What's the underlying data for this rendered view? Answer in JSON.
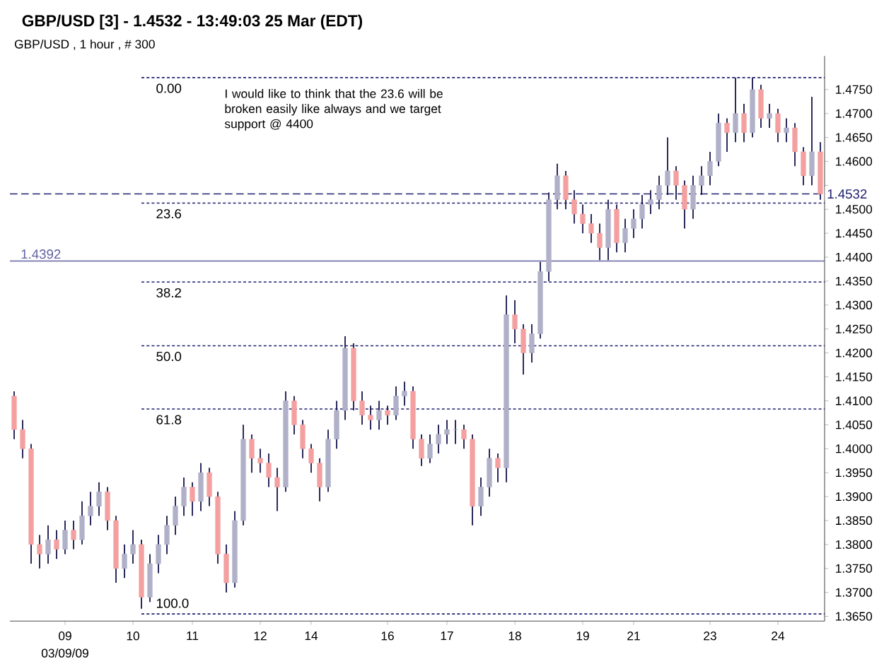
{
  "chart_data": {
    "type": "candlestick",
    "title": "GBP/USD [3] - 1.4532 - 13:49:03  25 Mar (EDT)",
    "subtitle": "GBP/USD , 1 hour , # 300",
    "annotations": [
      "I would like to think that the 23.6 will be broken easily like always and we target support @ 4400",
      "03/09/09",
      {
        "text": "0.00",
        "y": 1.4775
      },
      {
        "text": "23.6",
        "y": 1.4513
      },
      {
        "text": "38.2",
        "y": 1.4348
      },
      {
        "text": "50.0",
        "y": 1.4215
      },
      {
        "text": "61.8",
        "y": 1.4083
      },
      {
        "text": "100.0",
        "y": 1.3655
      }
    ],
    "categories": [
      null,
      null,
      null,
      null,
      null,
      null,
      "09",
      null,
      null,
      null,
      null,
      null,
      null,
      null,
      "10",
      null,
      null,
      null,
      null,
      null,
      null,
      "11",
      null,
      null,
      null,
      null,
      null,
      null,
      null,
      "12",
      null,
      null,
      null,
      null,
      null,
      "14",
      null,
      null,
      null,
      null,
      null,
      null,
      null,
      null,
      "16",
      null,
      null,
      null,
      null,
      null,
      null,
      "17",
      null,
      null,
      null,
      null,
      null,
      null,
      null,
      "18",
      null,
      null,
      null,
      null,
      null,
      null,
      null,
      "19",
      null,
      null,
      null,
      null,
      null,
      "21",
      null,
      null,
      null,
      null,
      null,
      null,
      null,
      null,
      "23",
      null,
      null,
      null,
      null,
      null,
      null,
      null,
      "24",
      null,
      null,
      null,
      null,
      null
    ],
    "colors": [
      "#f4a0a0",
      "#f4a0a0",
      "#f4a0a0",
      "#f4a0a0",
      "#b0b0c8",
      "#f4a0a0",
      "#b0b0c8",
      "#f4a0a0",
      "#b0b0c8",
      "#b0b0c8",
      "#b0b0c8",
      "#f4a0a0",
      "#f4a0a0",
      "#b0b0c8",
      "#b0b0c8",
      "#f4a0a0",
      "#b0b0c8",
      "#b0b0c8",
      "#b0b0c8",
      "#b0b0c8",
      "#b0b0c8",
      "#f4a0a0",
      "#b0b0c8",
      "#f4a0a0",
      "#f4a0a0",
      "#f4a0a0",
      "#b0b0c8",
      "#b0b0c8",
      "#f4a0a0",
      "#f4a0a0",
      "#f4a0a0",
      "#f4a0a0",
      "#b0b0c8",
      "#f4a0a0",
      "#f4a0a0",
      "#f4a0a0",
      "#f4a0a0",
      "#b0b0c8",
      "#b0b0c8",
      "#b0b0c8",
      "#f4a0a0",
      "#f4a0a0",
      "#f4a0a0",
      "#b0b0c8",
      "#f4a0a0",
      "#b0b0c8",
      "#b0b0c8",
      "#f4a0a0",
      "#f4a0a0",
      "#b0b0c8",
      "#b0b0c8",
      "#b0b0c8",
      "#b0b0c8",
      "#f4a0a0",
      "#f4a0a0",
      "#b0b0c8",
      "#b0b0c8",
      "#f4a0a0",
      "#b0b0c8",
      "#f4a0a0",
      "#f4a0a0",
      "#b0b0c8",
      "#b0b0c8",
      "#b0b0c8",
      "#b0b0c8",
      "#f4a0a0",
      "#f4a0a0",
      "#f4a0a0",
      "#f4a0a0",
      "#f4a0a0",
      "#b0b0c8",
      "#f4a0a0",
      "#b0b0c8",
      "#b0b0c8",
      "#b0b0c8",
      "#b0b0c8",
      "#b0b0c8",
      "#b0b0c8",
      "#f4a0a0",
      "#f4a0a0",
      "#b0b0c8",
      "#b0b0c8",
      "#b0b0c8",
      "#b0b0c8",
      "#f4a0a0",
      "#b0b0c8",
      "#f4a0a0",
      "#b0b0c8",
      "#f4a0a0",
      "#b0b0c8",
      "#f4a0a0",
      "#b0b0c8",
      "#f4a0a0",
      "#f4a0a0",
      "#b0b0c8",
      "#f4a0a0"
    ],
    "ohlc": [
      [
        1.411,
        1.412,
        1.402,
        1.404
      ],
      [
        1.404,
        1.406,
        1.398,
        1.4
      ],
      [
        1.4,
        1.401,
        1.376,
        1.38
      ],
      [
        1.38,
        1.382,
        1.375,
        1.378
      ],
      [
        1.378,
        1.384,
        1.376,
        1.381
      ],
      [
        1.381,
        1.383,
        1.377,
        1.379
      ],
      [
        1.379,
        1.385,
        1.378,
        1.383
      ],
      [
        1.383,
        1.385,
        1.379,
        1.381
      ],
      [
        1.381,
        1.389,
        1.38,
        1.386
      ],
      [
        1.386,
        1.391,
        1.384,
        1.388
      ],
      [
        1.388,
        1.393,
        1.386,
        1.391
      ],
      [
        1.391,
        1.392,
        1.383,
        1.385
      ],
      [
        1.385,
        1.386,
        1.372,
        1.375
      ],
      [
        1.375,
        1.38,
        1.373,
        1.378
      ],
      [
        1.378,
        1.383,
        1.376,
        1.38
      ],
      [
        1.38,
        1.381,
        1.3666,
        1.369
      ],
      [
        1.369,
        1.378,
        1.368,
        1.376
      ],
      [
        1.376,
        1.382,
        1.374,
        1.38
      ],
      [
        1.38,
        1.386,
        1.378,
        1.384
      ],
      [
        1.384,
        1.39,
        1.382,
        1.388
      ],
      [
        1.388,
        1.394,
        1.386,
        1.392
      ],
      [
        1.392,
        1.393,
        1.386,
        1.389
      ],
      [
        1.389,
        1.397,
        1.387,
        1.395
      ],
      [
        1.395,
        1.396,
        1.388,
        1.39
      ],
      [
        1.39,
        1.391,
        1.376,
        1.378
      ],
      [
        1.378,
        1.38,
        1.37,
        1.372
      ],
      [
        1.372,
        1.387,
        1.371,
        1.385
      ],
      [
        1.385,
        1.405,
        1.384,
        1.402
      ],
      [
        1.402,
        1.403,
        1.395,
        1.398
      ],
      [
        1.398,
        1.4,
        1.395,
        1.397
      ],
      [
        1.397,
        1.399,
        1.392,
        1.394
      ],
      [
        1.394,
        1.396,
        1.387,
        1.392
      ],
      [
        1.392,
        1.412,
        1.391,
        1.41
      ],
      [
        1.41,
        1.411,
        1.403,
        1.405
      ],
      [
        1.405,
        1.406,
        1.398,
        1.4
      ],
      [
        1.4,
        1.401,
        1.395,
        1.397
      ],
      [
        1.397,
        1.398,
        1.389,
        1.392
      ],
      [
        1.392,
        1.404,
        1.391,
        1.402
      ],
      [
        1.402,
        1.41,
        1.4,
        1.408
      ],
      [
        1.408,
        1.4235,
        1.406,
        1.421
      ],
      [
        1.421,
        1.422,
        1.408,
        1.41
      ],
      [
        1.41,
        1.412,
        1.405,
        1.407
      ],
      [
        1.407,
        1.409,
        1.404,
        1.406
      ],
      [
        1.406,
        1.41,
        1.404,
        1.408
      ],
      [
        1.408,
        1.409,
        1.405,
        1.407
      ],
      [
        1.407,
        1.413,
        1.406,
        1.411
      ],
      [
        1.411,
        1.414,
        1.409,
        1.412
      ],
      [
        1.412,
        1.413,
        1.4,
        1.402
      ],
      [
        1.402,
        1.403,
        1.3964,
        1.398
      ],
      [
        1.398,
        1.403,
        1.397,
        1.401
      ],
      [
        1.401,
        1.405,
        1.399,
        1.403
      ],
      [
        1.403,
        1.406,
        1.401,
        1.404
      ],
      [
        1.404,
        1.406,
        1.401,
        1.404
      ],
      [
        1.404,
        1.405,
        1.4,
        1.402
      ],
      [
        1.402,
        1.403,
        1.384,
        1.388
      ],
      [
        1.388,
        1.394,
        1.386,
        1.392
      ],
      [
        1.392,
        1.4,
        1.39,
        1.398
      ],
      [
        1.398,
        1.399,
        1.393,
        1.396
      ],
      [
        1.396,
        1.432,
        1.393,
        1.428
      ],
      [
        1.428,
        1.431,
        1.422,
        1.425
      ],
      [
        1.425,
        1.426,
        1.4155,
        1.42
      ],
      [
        1.42,
        1.426,
        1.418,
        1.424
      ],
      [
        1.424,
        1.439,
        1.423,
        1.437
      ],
      [
        1.437,
        1.4535,
        1.435,
        1.452
      ],
      [
        1.452,
        1.4595,
        1.45,
        1.457
      ],
      [
        1.457,
        1.458,
        1.45,
        1.452
      ],
      [
        1.452,
        1.454,
        1.447,
        1.449
      ],
      [
        1.449,
        1.451,
        1.445,
        1.447
      ],
      [
        1.447,
        1.449,
        1.443,
        1.445
      ],
      [
        1.445,
        1.447,
        1.4394,
        1.442
      ],
      [
        1.442,
        1.452,
        1.4394,
        1.45
      ],
      [
        1.45,
        1.451,
        1.441,
        1.443
      ],
      [
        1.443,
        1.448,
        1.441,
        1.446
      ],
      [
        1.446,
        1.45,
        1.444,
        1.448
      ],
      [
        1.448,
        1.453,
        1.446,
        1.451
      ],
      [
        1.451,
        1.454,
        1.449,
        1.452
      ],
      [
        1.452,
        1.457,
        1.45,
        1.455
      ],
      [
        1.455,
        1.465,
        1.453,
        1.458
      ],
      [
        1.458,
        1.459,
        1.452,
        1.455
      ],
      [
        1.455,
        1.456,
        1.446,
        1.45
      ],
      [
        1.45,
        1.457,
        1.448,
        1.455
      ],
      [
        1.455,
        1.459,
        1.453,
        1.457
      ],
      [
        1.457,
        1.462,
        1.455,
        1.46
      ],
      [
        1.46,
        1.47,
        1.459,
        1.468
      ],
      [
        1.468,
        1.469,
        1.462,
        1.466
      ],
      [
        1.466,
        1.4775,
        1.464,
        1.47
      ],
      [
        1.47,
        1.472,
        1.464,
        1.466
      ],
      [
        1.466,
        1.4775,
        1.465,
        1.475
      ],
      [
        1.475,
        1.476,
        1.467,
        1.469
      ],
      [
        1.469,
        1.472,
        1.467,
        1.47
      ],
      [
        1.47,
        1.471,
        1.464,
        1.466
      ],
      [
        1.466,
        1.469,
        1.464,
        1.467
      ],
      [
        1.467,
        1.468,
        1.459,
        1.462
      ],
      [
        1.462,
        1.463,
        1.455,
        1.457
      ],
      [
        1.457,
        1.4735,
        1.455,
        1.462
      ],
      [
        1.462,
        1.464,
        1.452,
        1.4532
      ]
    ],
    "ylim": [
      1.364,
      1.482
    ],
    "yticks": [
      {
        "value": 1.365,
        "label": "1.3650"
      },
      {
        "value": 1.37,
        "label": "1.3700"
      },
      {
        "value": 1.375,
        "label": "1.3750"
      },
      {
        "value": 1.38,
        "label": "1.3800"
      },
      {
        "value": 1.385,
        "label": "1.3850"
      },
      {
        "value": 1.39,
        "label": "1.3900"
      },
      {
        "value": 1.395,
        "label": "1.3950"
      },
      {
        "value": 1.4,
        "label": "1.4000"
      },
      {
        "value": 1.405,
        "label": "1.4050"
      },
      {
        "value": 1.41,
        "label": "1.4100"
      },
      {
        "value": 1.415,
        "label": "1.4150"
      },
      {
        "value": 1.42,
        "label": "1.4200"
      },
      {
        "value": 1.425,
        "label": "1.4250"
      },
      {
        "value": 1.43,
        "label": "1.4300"
      },
      {
        "value": 1.435,
        "label": "1.4350"
      },
      {
        "value": 1.44,
        "label": "1.4400"
      },
      {
        "value": 1.445,
        "label": "1.4450"
      },
      {
        "value": 1.45,
        "label": "1.4500"
      },
      {
        "value": 1.455,
        "label": null
      },
      {
        "value": 1.46,
        "label": "1.4600"
      },
      {
        "value": 1.465,
        "label": "1.4650"
      },
      {
        "value": 1.47,
        "label": "1.4700"
      },
      {
        "value": 1.475,
        "label": "1.4750"
      }
    ],
    "ref_lines": [
      {
        "axis": "y",
        "value": 1.4532,
        "label": "1.4532",
        "color": "#202070",
        "line_style": "dashed"
      },
      {
        "axis": "y",
        "value": 1.4392,
        "label": "1.4392",
        "color": "#6060a0",
        "line_style": "solid"
      },
      {
        "axis": "y",
        "value": 1.4775,
        "color": "#202070",
        "line_style": "dotted"
      },
      {
        "axis": "y",
        "value": 1.4513,
        "color": "#202070",
        "line_style": "dotted"
      },
      {
        "axis": "y",
        "value": 1.4348,
        "color": "#202070",
        "line_style": "dotted"
      },
      {
        "axis": "y",
        "value": 1.4215,
        "color": "#202070",
        "line_style": "dotted"
      },
      {
        "axis": "y",
        "value": 1.4083,
        "color": "#202070",
        "line_style": "dotted"
      },
      {
        "axis": "y",
        "value": 1.3655,
        "color": "#202070",
        "line_style": "dotted"
      }
    ]
  }
}
